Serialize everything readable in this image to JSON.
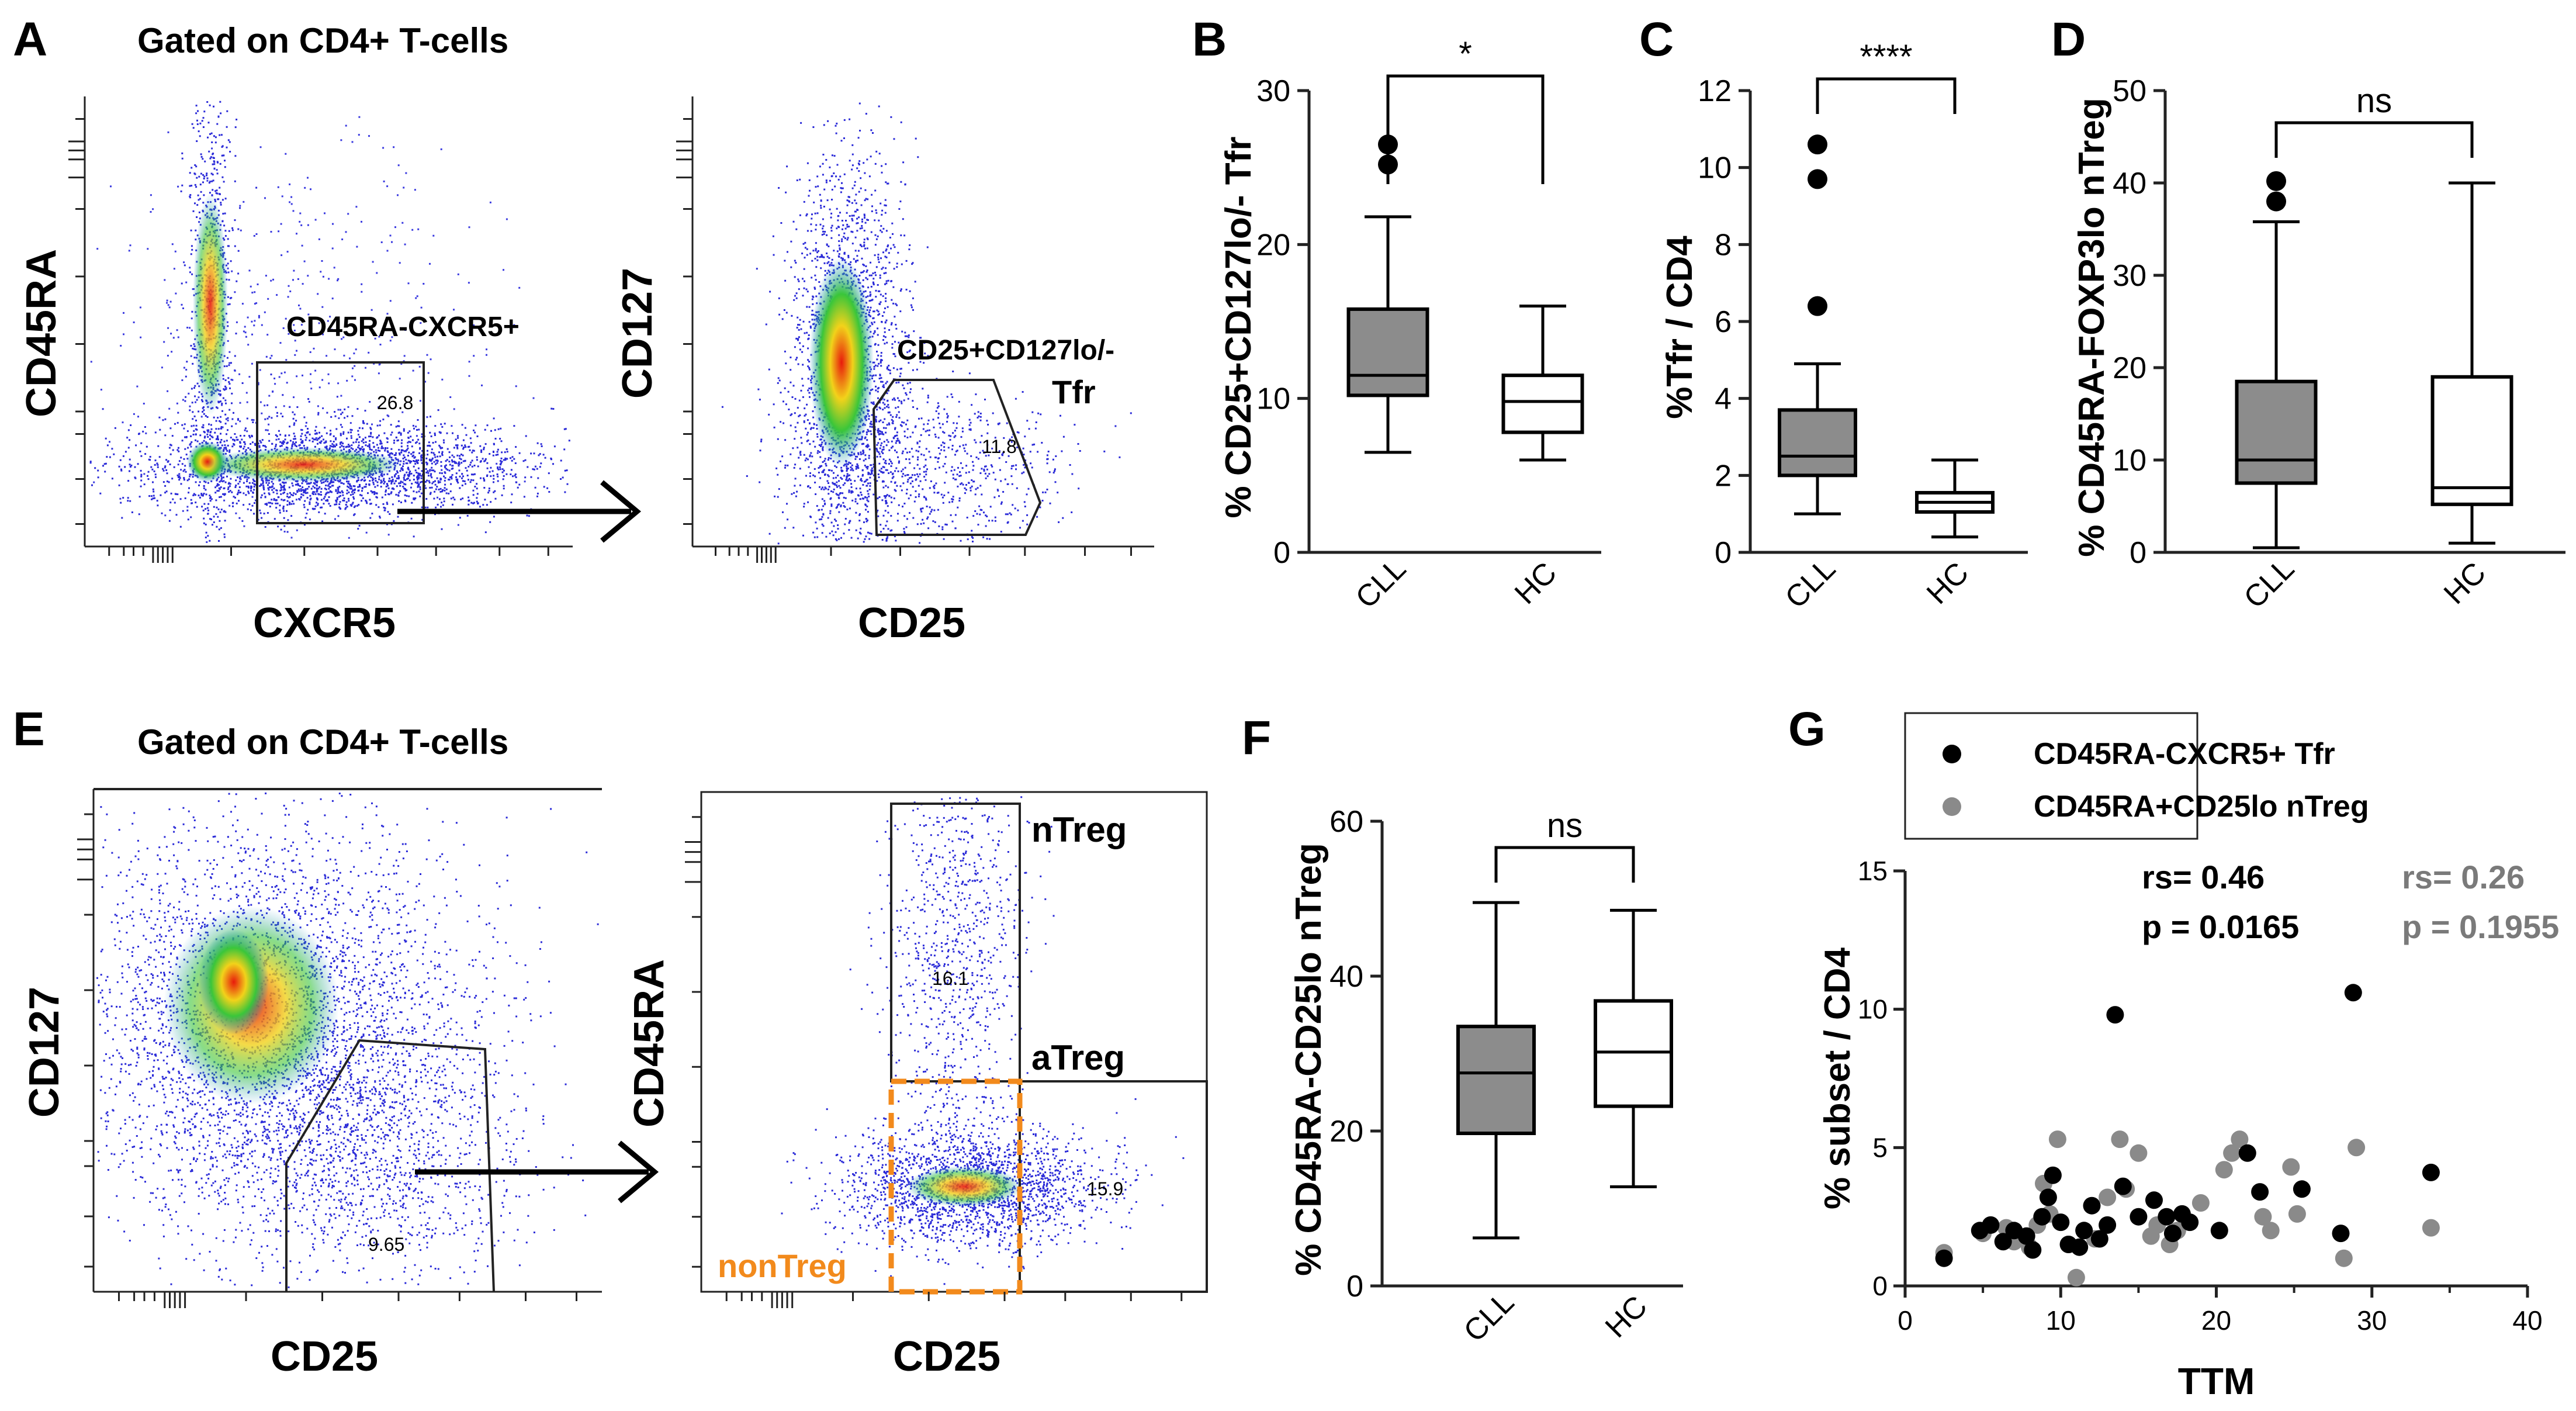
{
  "colors": {
    "cll_box": "#8c8c8c",
    "hc_box": "#ffffff",
    "tfr_point": "#000000",
    "ntreg_point": "#8a8a8a",
    "nontreg_gate": "#f28a1c",
    "density_low": "#1c1cd2",
    "density_high": "#e81a0c"
  },
  "panel_letters": {
    "A": "A",
    "B": "B",
    "C": "C",
    "D": "D",
    "E": "E",
    "F": "F",
    "G": "G"
  },
  "flow_A": {
    "title": "Gated on CD4+ T-cells",
    "plot1": {
      "ylabel": "CD45RA",
      "xlabel": "CXCR5",
      "gate_label": "CD45RA-CXCR5+",
      "gate_value": "26.8"
    },
    "plot2": {
      "ylabel": "CD127",
      "xlabel": "CD25",
      "gate_label_line1": "CD25+CD127lo/-",
      "gate_label_line2": "Tfr",
      "gate_value": "11.8"
    }
  },
  "flow_E": {
    "title": "Gated on CD4+ T-cells",
    "plot1": {
      "ylabel": "CD127",
      "xlabel": "CD25",
      "gate_value": "9.65"
    },
    "plot2": {
      "ylabel": "CD45RA",
      "xlabel": "CD25",
      "ntreg_label": "nTreg",
      "ntreg_value": "16.1",
      "atreg_label": "aTreg",
      "atreg_value": "15.9",
      "nontreg_label": "nonTreg"
    }
  },
  "chart_data": [
    {
      "id": "B",
      "type": "box",
      "ylabel": "% CD25+CD127lo/- Tfr",
      "categories": [
        "CLL",
        "HC"
      ],
      "yticks": [
        "0",
        "10",
        "20",
        "30"
      ],
      "ylim": [
        0,
        30
      ],
      "significance": "*",
      "boxes": [
        {
          "name": "CLL",
          "min": 6.5,
          "q1": 10.2,
          "median": 11.5,
          "q3": 15.8,
          "max": 21.8,
          "outliers": [
            25.2,
            26.5
          ]
        },
        {
          "name": "HC",
          "min": 6.0,
          "q1": 7.8,
          "median": 9.8,
          "q3": 11.5,
          "max": 16.0,
          "outliers": []
        }
      ]
    },
    {
      "id": "C",
      "type": "box",
      "ylabel": "%Tfr / CD4",
      "categories": [
        "CLL",
        "HC"
      ],
      "yticks": [
        "0",
        "2",
        "4",
        "6",
        "8",
        "10",
        "12"
      ],
      "ylim": [
        0,
        12
      ],
      "significance": "****",
      "boxes": [
        {
          "name": "CLL",
          "min": 1.0,
          "q1": 2.0,
          "median": 2.5,
          "q3": 3.7,
          "max": 4.9,
          "outliers": [
            6.4,
            9.7,
            10.6
          ]
        },
        {
          "name": "HC",
          "min": 0.4,
          "q1": 1.05,
          "median": 1.3,
          "q3": 1.55,
          "max": 2.4,
          "outliers": []
        }
      ]
    },
    {
      "id": "D",
      "type": "box",
      "ylabel": "% CD45RA-FOXP3lo nTreg",
      "categories": [
        "CLL",
        "HC"
      ],
      "yticks": [
        "0",
        "10",
        "20",
        "30",
        "40",
        "50"
      ],
      "ylim": [
        0,
        50
      ],
      "significance": "ns",
      "boxes": [
        {
          "name": "CLL",
          "min": 0.5,
          "q1": 7.5,
          "median": 10.0,
          "q3": 18.5,
          "max": 35.8,
          "outliers": [
            38.0,
            40.2
          ]
        },
        {
          "name": "HC",
          "min": 1.0,
          "q1": 5.2,
          "median": 7.0,
          "q3": 19.0,
          "max": 40.0,
          "outliers": []
        }
      ]
    },
    {
      "id": "F",
      "type": "box",
      "ylabel": "% CD45RA-CD25lo nTreg",
      "categories": [
        "CLL",
        "HC"
      ],
      "yticks": [
        "0",
        "20",
        "40",
        "60"
      ],
      "ylim": [
        0,
        60
      ],
      "significance": "ns",
      "boxes": [
        {
          "name": "CLL",
          "min": 6.2,
          "q1": 19.7,
          "median": 27.5,
          "q3": 33.5,
          "max": 49.5,
          "outliers": []
        },
        {
          "name": "HC",
          "min": 12.8,
          "q1": 23.2,
          "median": 30.2,
          "q3": 36.8,
          "max": 48.5,
          "outliers": []
        }
      ]
    },
    {
      "id": "G",
      "type": "scatter",
      "xlabel": "TTM",
      "ylabel": "% subset / CD4",
      "xticks": [
        "0",
        "10",
        "20",
        "30",
        "40"
      ],
      "yticks": [
        "0",
        "5",
        "10",
        "15"
      ],
      "xlim": [
        0,
        40
      ],
      "ylim": [
        0,
        15
      ],
      "legend": [
        "CD45RA-CXCR5+ Tfr",
        "CD45RA+CD25lo nTreg"
      ],
      "stats": [
        {
          "rs": "rs= 0.46",
          "p": "p = 0.0165"
        },
        {
          "rs": "rs= 0.26",
          "p": "p = 0.1955"
        }
      ],
      "series": [
        {
          "name": "CD45RA-CXCR5+ Tfr",
          "points": [
            [
              2.5,
              1.0
            ],
            [
              4.8,
              2.0
            ],
            [
              5.5,
              2.2
            ],
            [
              6.3,
              1.6
            ],
            [
              7.0,
              2.0
            ],
            [
              7.8,
              1.8
            ],
            [
              8.2,
              1.3
            ],
            [
              8.8,
              2.5
            ],
            [
              9.2,
              3.2
            ],
            [
              9.5,
              4.0
            ],
            [
              10.0,
              2.3
            ],
            [
              10.5,
              1.5
            ],
            [
              11.2,
              1.4
            ],
            [
              11.5,
              2.0
            ],
            [
              12.0,
              2.9
            ],
            [
              12.5,
              1.7
            ],
            [
              13.0,
              2.2
            ],
            [
              13.5,
              9.8
            ],
            [
              14.0,
              3.6
            ],
            [
              15.0,
              2.5
            ],
            [
              16.0,
              3.1
            ],
            [
              16.8,
              2.5
            ],
            [
              17.2,
              1.9
            ],
            [
              17.8,
              2.6
            ],
            [
              18.3,
              2.3
            ],
            [
              20.2,
              2.0
            ],
            [
              22.0,
              4.8
            ],
            [
              22.8,
              3.4
            ],
            [
              25.5,
              3.5
            ],
            [
              28.0,
              1.9
            ],
            [
              28.8,
              10.6
            ],
            [
              33.8,
              4.1
            ]
          ]
        },
        {
          "name": "CD45RA+CD25lo nTreg",
          "points": [
            [
              2.5,
              1.2
            ],
            [
              5.0,
              1.9
            ],
            [
              6.5,
              2.1
            ],
            [
              7.0,
              1.6
            ],
            [
              8.0,
              1.4
            ],
            [
              8.5,
              2.2
            ],
            [
              8.9,
              3.7
            ],
            [
              9.3,
              2.6
            ],
            [
              9.8,
              5.3
            ],
            [
              10.5,
              1.5
            ],
            [
              11.0,
              0.3
            ],
            [
              11.5,
              2.0
            ],
            [
              12.2,
              1.7
            ],
            [
              13.0,
              3.2
            ],
            [
              13.8,
              5.3
            ],
            [
              14.2,
              3.5
            ],
            [
              15.0,
              4.8
            ],
            [
              15.8,
              1.8
            ],
            [
              16.2,
              2.2
            ],
            [
              17.0,
              1.5
            ],
            [
              17.5,
              2.0
            ],
            [
              19.0,
              3.0
            ],
            [
              20.5,
              4.2
            ],
            [
              21.0,
              4.8
            ],
            [
              21.5,
              5.3
            ],
            [
              23.0,
              2.5
            ],
            [
              23.5,
              2.0
            ],
            [
              24.8,
              4.3
            ],
            [
              25.2,
              2.6
            ],
            [
              28.2,
              1.0
            ],
            [
              29.0,
              5.0
            ],
            [
              33.8,
              2.1
            ]
          ]
        }
      ]
    }
  ]
}
